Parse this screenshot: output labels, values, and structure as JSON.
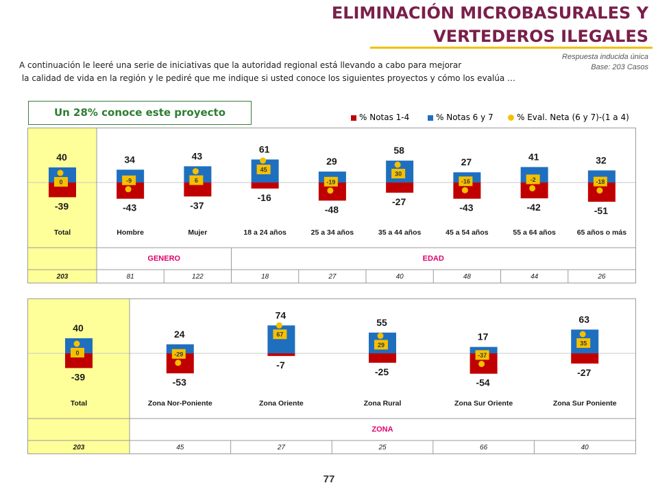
{
  "header": {
    "title_line1": "ELIMINACIÓN MICROBASURALES Y",
    "title_line2": "VERTEDEROS ILEGALES",
    "meta_line1": "Respuesta inducida única",
    "meta_line2": "Base: 203 Casos",
    "intro_line1": "A continuación le leeré una serie de iniciativas que la autoridad regional está llevando a cabo para mejorar",
    "intro_line2": " la calidad de vida en la región y le pediré que me indique si usted conoce los siguientes proyectos y cómo los evalúa …"
  },
  "callout": "Un 28% conoce este proyecto",
  "legend": {
    "neg": "% Notas 1-4",
    "pos": "% Notas 6 y 7",
    "net": "% Eval. Neta (6 y 7)-(1 a 4)"
  },
  "colors": {
    "pos": "#1f6fbf",
    "neg": "#c00000",
    "net": "#f5c000",
    "total_bg": "#ffff99",
    "group_text": "#e0006c"
  },
  "page_number": "77",
  "chart_data": [
    {
      "type": "bar",
      "categories": [
        "Total",
        "Hombre",
        "Mujer",
        "18 a 24 años",
        "25 a 34 años",
        "35 a 44 años",
        "45 a 54 años",
        "55 a 64 años",
        "65 años o más"
      ],
      "series": [
        {
          "name": "% Notas 1-4",
          "values": [
            -39,
            -43,
            -37,
            -16,
            -48,
            -27,
            -43,
            -42,
            -51
          ]
        },
        {
          "name": "% Notas 6 y 7",
          "values": [
            40,
            34,
            43,
            61,
            29,
            58,
            27,
            41,
            32
          ]
        },
        {
          "name": "% Eval. Neta (6 y 7)-(1 a 4)",
          "values": [
            0,
            -9,
            6,
            45,
            -19,
            30,
            -16,
            -2,
            -18
          ]
        }
      ],
      "groups": [
        {
          "label": "GENERO",
          "categories": [
            "Hombre",
            "Mujer"
          ]
        },
        {
          "label": "EDAD",
          "categories": [
            "18 a 24 años",
            "25 a 34 años",
            "35 a 44 años",
            "45 a 54 años",
            "55 a 64 años",
            "65 años o más"
          ]
        }
      ],
      "bases": [
        "203",
        "81",
        "122",
        "18",
        "27",
        "40",
        "48",
        "44",
        "26"
      ]
    },
    {
      "type": "bar",
      "categories": [
        "Total",
        "Zona Nor-Poniente",
        "Zona Oriente",
        "Zona Rural",
        "Zona Sur Oriente",
        "Zona Sur Poniente"
      ],
      "series": [
        {
          "name": "% Notas 1-4",
          "values": [
            -39,
            -53,
            -7,
            -25,
            -54,
            -27
          ]
        },
        {
          "name": "% Notas 6 y 7",
          "values": [
            40,
            24,
            74,
            55,
            17,
            63
          ]
        },
        {
          "name": "% Eval. Neta (6 y 7)-(1 a 4)",
          "values": [
            0,
            -29,
            67,
            29,
            -37,
            35
          ]
        }
      ],
      "groups": [
        {
          "label": "ZONA",
          "categories": [
            "Zona Nor-Poniente",
            "Zona Oriente",
            "Zona Rural",
            "Zona Sur Oriente",
            "Zona Sur Poniente"
          ]
        }
      ],
      "bases": [
        "203",
        "45",
        "27",
        "25",
        "66",
        "40"
      ]
    }
  ]
}
